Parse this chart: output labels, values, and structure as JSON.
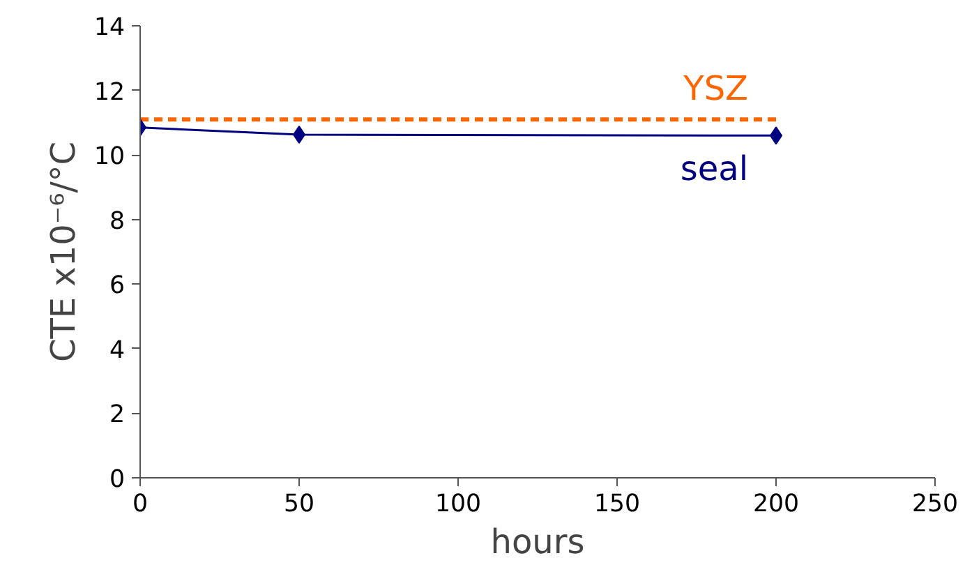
{
  "chart_data": {
    "type": "line",
    "xlabel": "hours",
    "ylabel": "CTE x10⁻⁶/°C",
    "xlim": [
      0,
      250
    ],
    "xticks": [
      0,
      50,
      100,
      150,
      200,
      250
    ],
    "ylim": [
      0,
      14
    ],
    "yticks": [
      0,
      2,
      4,
      6,
      8,
      10,
      12,
      14
    ],
    "grid": false,
    "legend": false,
    "series": [
      {
        "name": "YSZ",
        "color": "#ff6600",
        "x": [
          0,
          200
        ],
        "values": [
          11.1,
          11.1
        ],
        "line_style": "dashed",
        "marker": "none"
      },
      {
        "name": "seal",
        "color": "#000080",
        "x": [
          0,
          50,
          200
        ],
        "values": [
          10.85,
          10.63,
          10.6
        ],
        "line_style": "solid",
        "marker": "diamond"
      }
    ]
  }
}
